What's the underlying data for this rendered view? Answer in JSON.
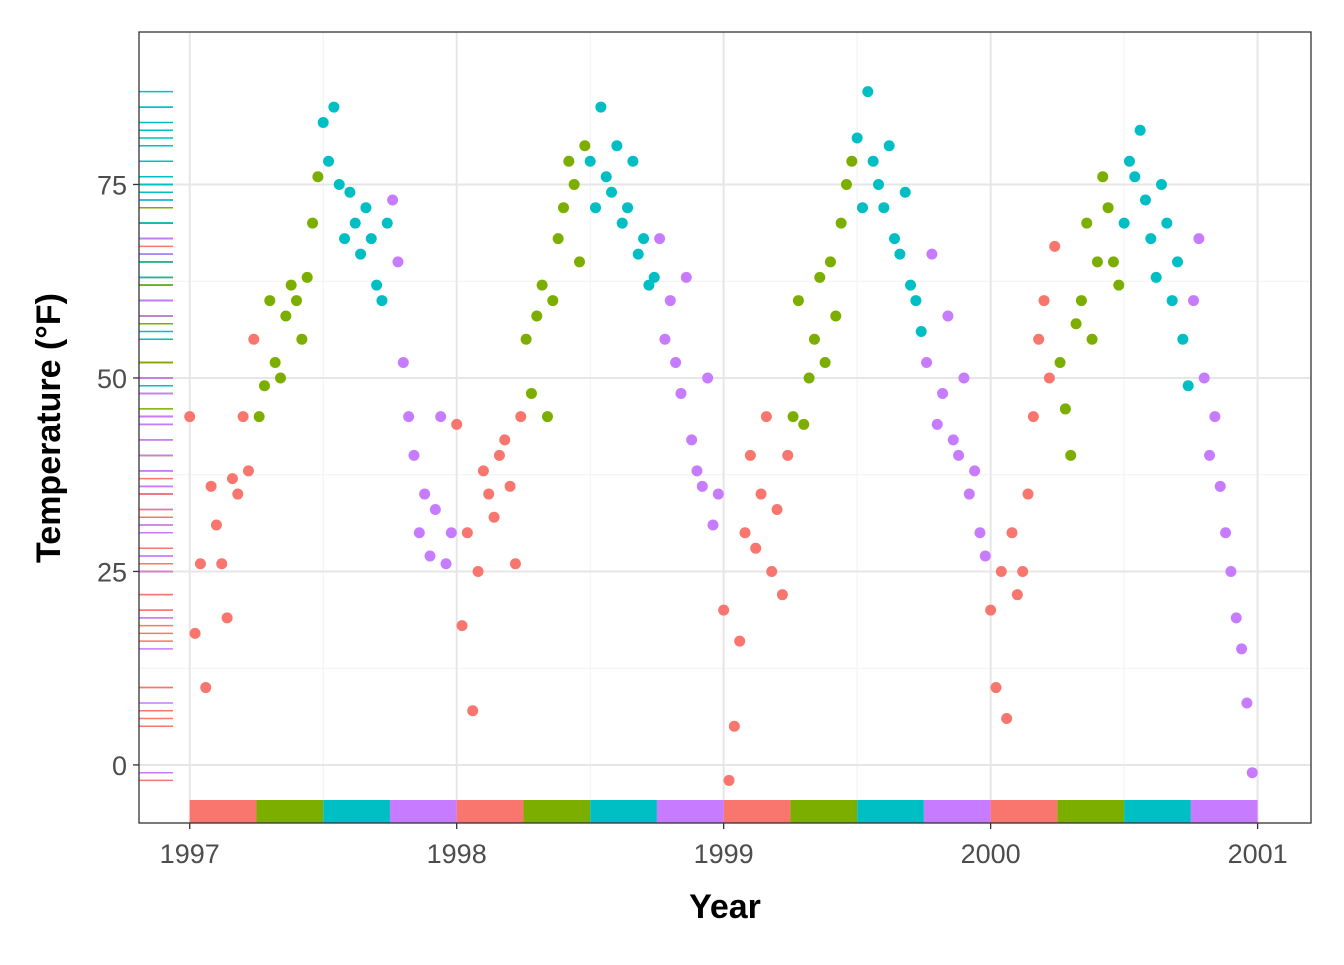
{
  "chart_data": {
    "type": "scatter",
    "title": "",
    "xlabel": "Year",
    "ylabel": "Temperature (°F)",
    "xlim": [
      1996.81,
      2001.2
    ],
    "ylim": [
      -7.5,
      94.7
    ],
    "x_ticks": [
      1997,
      1998,
      1999,
      2000,
      2001
    ],
    "x_tick_labels": [
      "1997",
      "1998",
      "1999",
      "2000",
      "2001"
    ],
    "y_ticks": [
      0,
      25,
      50,
      75
    ],
    "y_tick_labels": [
      "0",
      "25",
      "50",
      "75"
    ],
    "grid": true,
    "legend": "none",
    "y_rug": true,
    "season_colors": [
      "#F8766D",
      "#7CAE00",
      "#00BFC4",
      "#C77CFF"
    ],
    "yearly_values": {
      "1997": [
        45,
        17,
        26,
        10,
        36,
        31,
        26,
        19,
        37,
        35,
        45,
        38,
        55,
        45,
        49,
        60,
        52,
        50,
        58,
        62,
        60,
        55,
        63,
        70,
        76,
        83,
        78,
        85,
        75,
        68,
        74,
        70,
        66,
        72,
        68,
        62,
        60,
        70,
        73,
        65,
        52,
        45,
        40,
        30,
        35,
        27,
        33,
        45,
        26,
        30
      ],
      "1998": [
        44,
        18,
        30,
        7,
        25,
        38,
        35,
        32,
        40,
        42,
        36,
        26,
        45,
        55,
        48,
        58,
        62,
        45,
        60,
        68,
        72,
        78,
        75,
        65,
        80,
        78,
        72,
        85,
        76,
        74,
        80,
        70,
        72,
        78,
        66,
        68,
        62,
        63,
        68,
        55,
        60,
        52,
        48,
        63,
        42,
        38,
        36,
        50,
        31,
        35
      ],
      "1999": [
        20,
        -2,
        5,
        16,
        30,
        40,
        28,
        35,
        45,
        25,
        33,
        22,
        40,
        45,
        60,
        44,
        50,
        55,
        63,
        52,
        65,
        58,
        70,
        75,
        78,
        81,
        72,
        87,
        78,
        75,
        72,
        80,
        68,
        66,
        74,
        62,
        60,
        56,
        52,
        66,
        44,
        48,
        58,
        42,
        40,
        50,
        35,
        38,
        30,
        27
      ],
      "2000": [
        20,
        10,
        25,
        6,
        30,
        22,
        25,
        35,
        45,
        55,
        60,
        50,
        67,
        52,
        46,
        40,
        57,
        60,
        70,
        55,
        65,
        76,
        72,
        65,
        62,
        70,
        78,
        76,
        82,
        73,
        68,
        63,
        75,
        70,
        60,
        65,
        55,
        49,
        60,
        68,
        50,
        40,
        45,
        36,
        30,
        25,
        19,
        15,
        8,
        -1
      ]
    },
    "x_step_years": 0.02,
    "season_tiles": [
      {
        "from": 1997.0,
        "to": 1997.25,
        "color": "#F8766D"
      },
      {
        "from": 1997.25,
        "to": 1997.5,
        "color": "#7CAE00"
      },
      {
        "from": 1997.5,
        "to": 1997.75,
        "color": "#00BFC4"
      },
      {
        "from": 1997.75,
        "to": 1998.0,
        "color": "#C77CFF"
      },
      {
        "from": 1998.0,
        "to": 1998.25,
        "color": "#F8766D"
      },
      {
        "from": 1998.25,
        "to": 1998.5,
        "color": "#7CAE00"
      },
      {
        "from": 1998.5,
        "to": 1998.75,
        "color": "#00BFC4"
      },
      {
        "from": 1998.75,
        "to": 1999.0,
        "color": "#C77CFF"
      },
      {
        "from": 1999.0,
        "to": 1999.25,
        "color": "#F8766D"
      },
      {
        "from": 1999.25,
        "to": 1999.5,
        "color": "#7CAE00"
      },
      {
        "from": 1999.5,
        "to": 1999.75,
        "color": "#00BFC4"
      },
      {
        "from": 1999.75,
        "to": 2000.0,
        "color": "#C77CFF"
      },
      {
        "from": 2000.0,
        "to": 2000.25,
        "color": "#F8766D"
      },
      {
        "from": 2000.25,
        "to": 2000.5,
        "color": "#7CAE00"
      },
      {
        "from": 2000.5,
        "to": 2000.75,
        "color": "#00BFC4"
      },
      {
        "from": 2000.75,
        "to": 2001.0,
        "color": "#C77CFF"
      }
    ]
  }
}
